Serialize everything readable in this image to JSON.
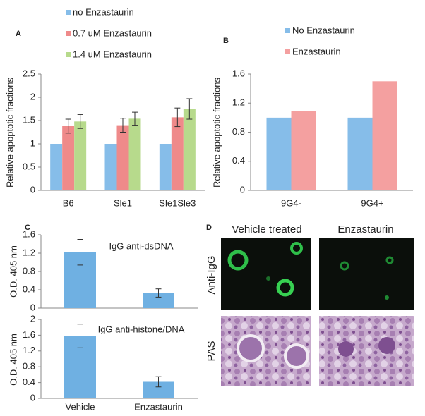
{
  "chart_data": [
    {
      "type": "bar",
      "panel": "A",
      "ylabel": "Relative apoptotic fractions",
      "categories": [
        "B6",
        "Sle1",
        "Sle1Sle3"
      ],
      "series": [
        {
          "name": "no Enzastaurin",
          "color": "#86bde9",
          "values": [
            1,
            1,
            1
          ]
        },
        {
          "name": "0.7 uM  Enzastaurin",
          "color": "#ef8a8a",
          "values": [
            1.38,
            1.4,
            1.57
          ],
          "errors": [
            0.15,
            0.15,
            0.2
          ]
        },
        {
          "name": "1.4 uM  Enzastaurin",
          "color": "#b7da8c",
          "values": [
            1.48,
            1.54,
            1.75
          ],
          "errors": [
            0.15,
            0.14,
            0.22
          ]
        }
      ],
      "ylim": [
        0,
        2.5
      ],
      "yticks": [
        0,
        0.5,
        1,
        1.5,
        2,
        2.5
      ]
    },
    {
      "type": "bar",
      "panel": "B",
      "ylabel": "Relative apoptotic fractions",
      "categories": [
        "9G4-",
        "9G4+"
      ],
      "series": [
        {
          "name": "No Enzastaurin",
          "color": "#86bde9",
          "values": [
            1,
            1
          ]
        },
        {
          "name": "Enzastaurin",
          "color": "#f4a0a0",
          "values": [
            1.09,
            1.5
          ]
        }
      ],
      "ylim": [
        0,
        1.6
      ],
      "yticks": [
        0,
        0.4,
        0.8,
        1.2,
        1.6
      ]
    },
    {
      "type": "bar",
      "panel": "C",
      "ylabel": "O.D. 405 nm",
      "annotation": "IgG anti-dsDNA",
      "color": "#6fb0e2",
      "values": [
        1.22,
        0.33
      ],
      "errors": [
        0.28,
        0.09
      ],
      "ylim": [
        0,
        1.6
      ],
      "yticks": [
        0,
        0.4,
        0.8,
        1.2,
        1.6
      ]
    },
    {
      "type": "bar",
      "ylabel": "O.D. 405 nm",
      "annotation": "IgG anti-histone/DNA",
      "categories": [
        "Vehicle",
        "Enzastaurin"
      ],
      "color": "#6fb0e2",
      "values": [
        1.58,
        0.42
      ],
      "errors": [
        0.3,
        0.13
      ],
      "ylim": [
        0,
        2
      ],
      "yticks": [
        0,
        0.4,
        0.8,
        1.2,
        1.6,
        2
      ]
    }
  ],
  "panel_d": {
    "label": "D",
    "columns": [
      "Vehicle treated",
      "Enzastaurin"
    ],
    "rows": [
      "Anti-IgG",
      "PAS"
    ]
  }
}
